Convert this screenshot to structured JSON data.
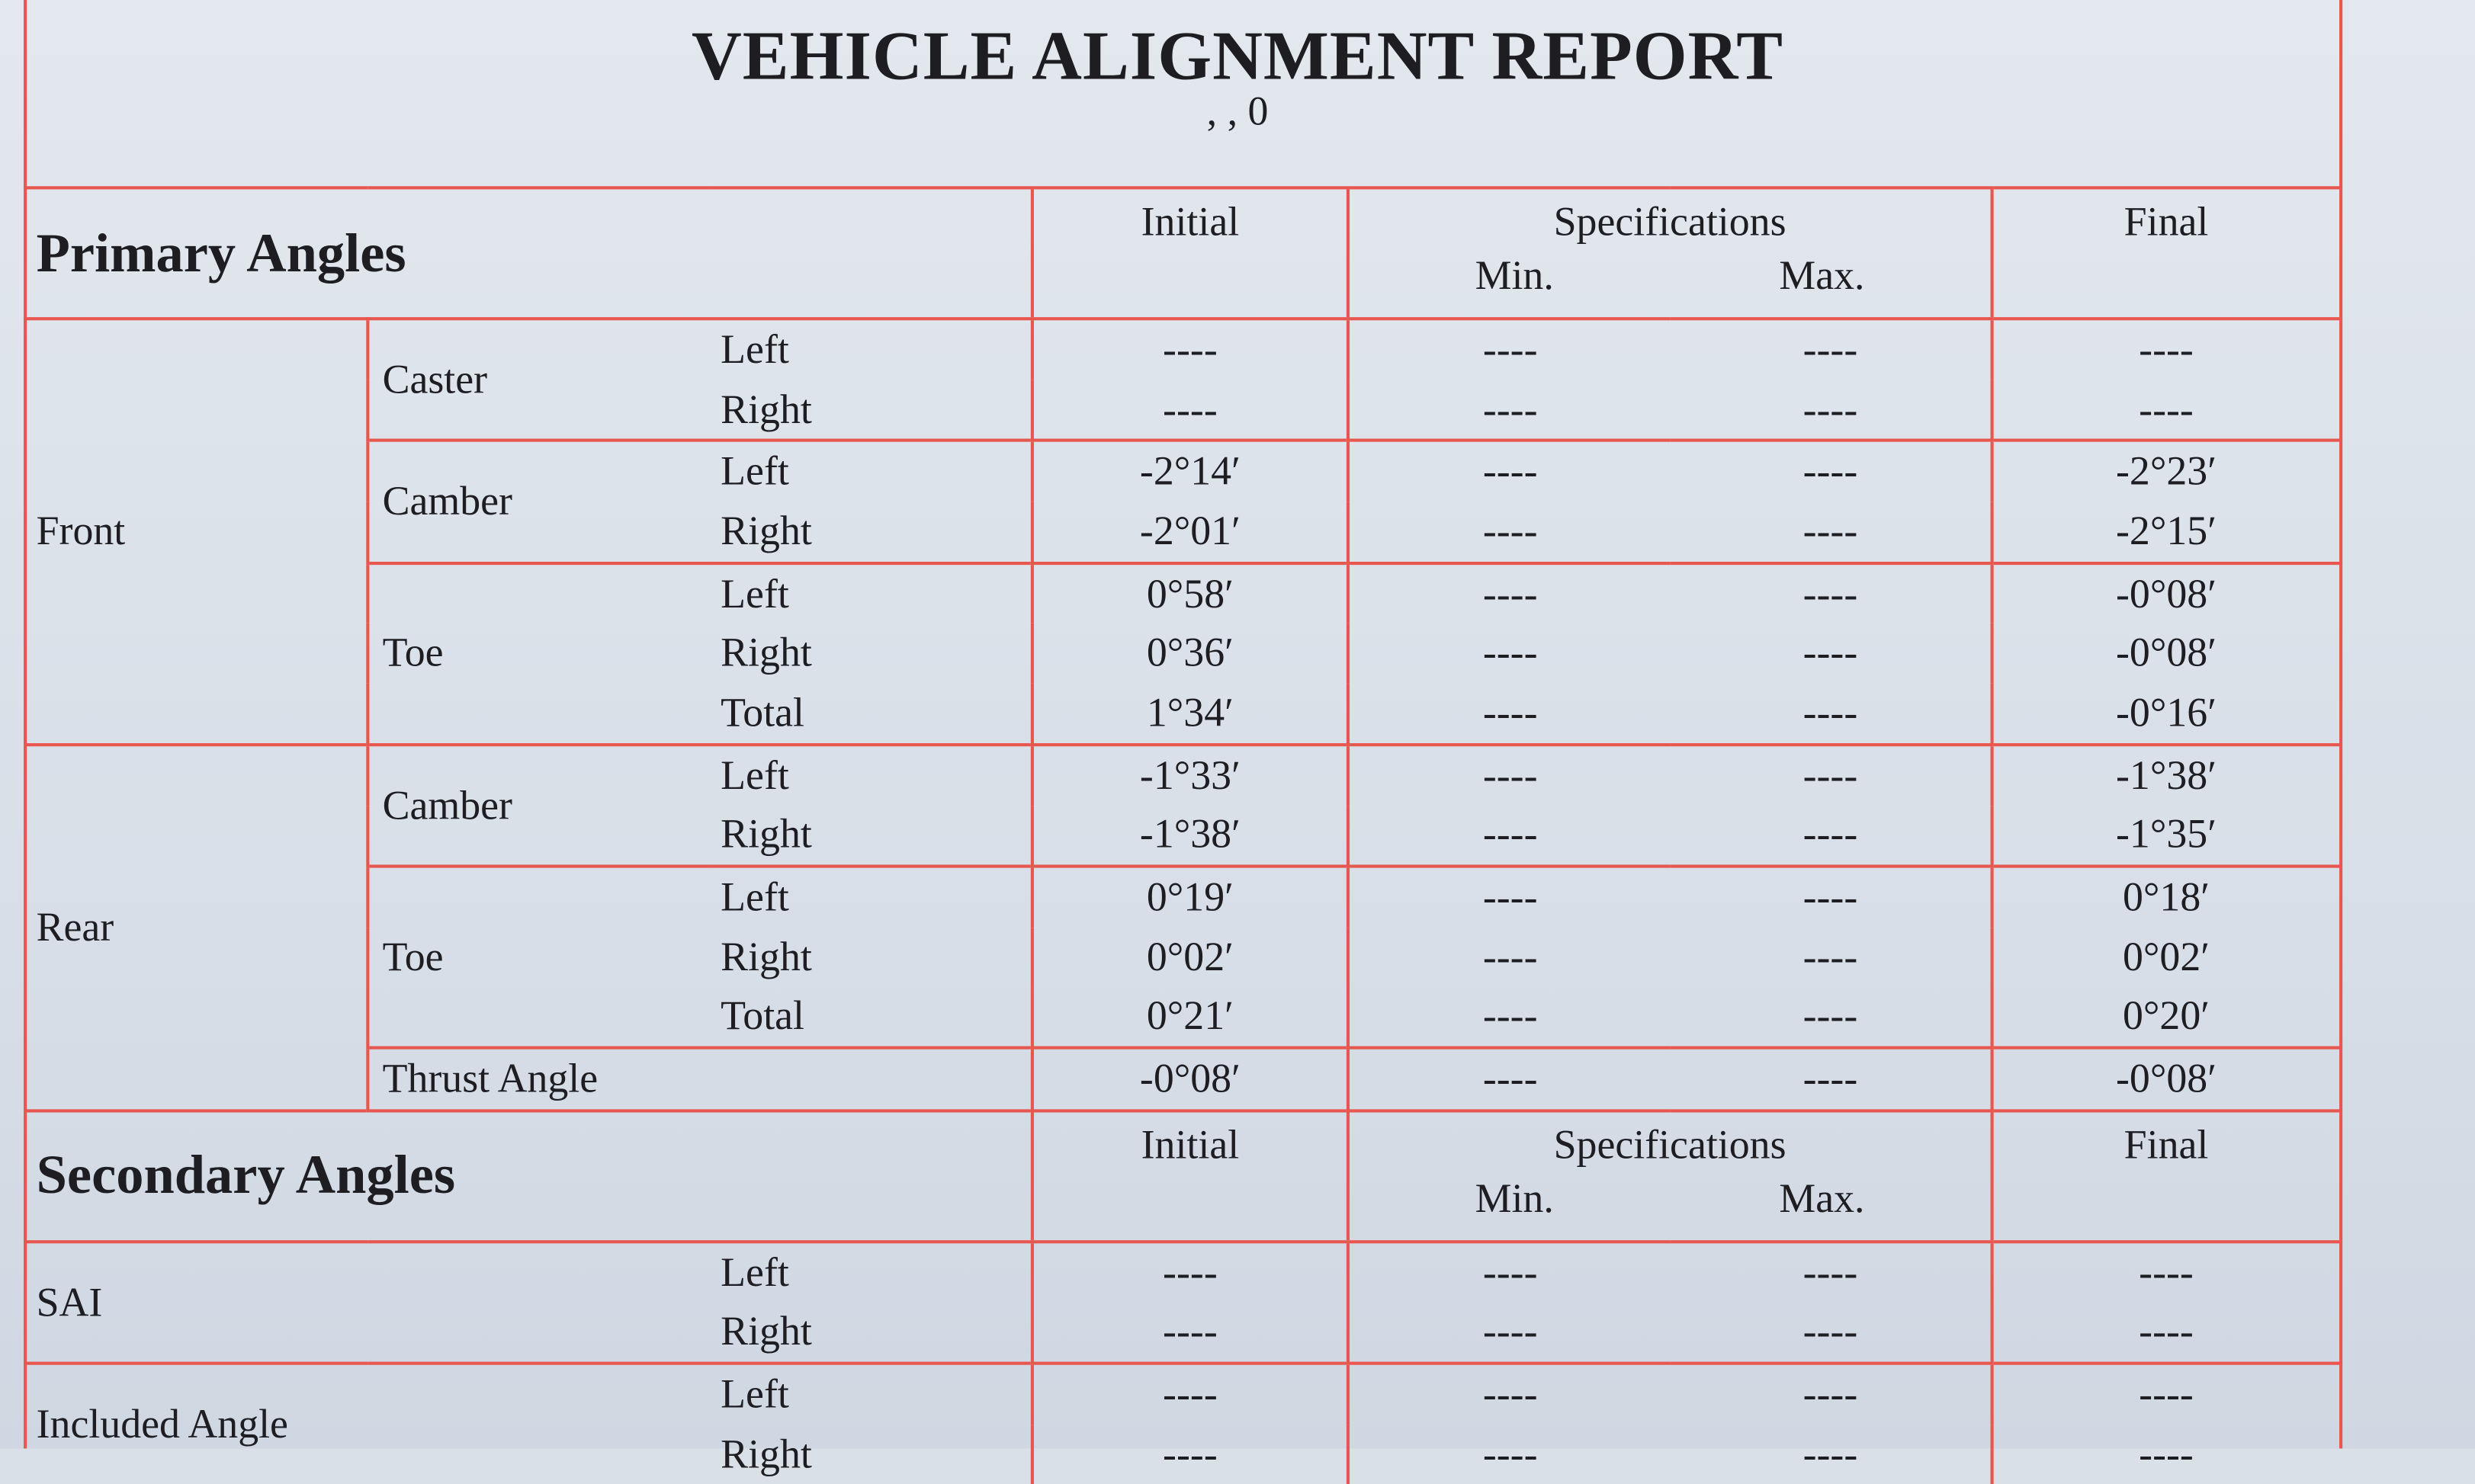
{
  "report": {
    "title": "VEHICLE ALIGNMENT REPORT",
    "subtitle": ", , 0"
  },
  "columns": {
    "initial": "Initial",
    "specifications": "Specifications",
    "min": "Min.",
    "max": "Max.",
    "final": "Final"
  },
  "primary": {
    "heading": "Primary Angles",
    "sections": [
      {
        "label": "Front",
        "groups": [
          {
            "angle": "Caster",
            "rows": [
              {
                "side": "Left",
                "initial": "----",
                "min": "----",
                "max": "----",
                "final": "----"
              },
              {
                "side": "Right",
                "initial": "----",
                "min": "----",
                "max": "----",
                "final": "----"
              }
            ]
          },
          {
            "angle": "Camber",
            "rows": [
              {
                "side": "Left",
                "initial": "-2°14′",
                "min": "----",
                "max": "----",
                "final": "-2°23′"
              },
              {
                "side": "Right",
                "initial": "-2°01′",
                "min": "----",
                "max": "----",
                "final": "-2°15′"
              }
            ]
          },
          {
            "angle": "Toe",
            "rows": [
              {
                "side": "Left",
                "initial": "0°58′",
                "min": "----",
                "max": "----",
                "final": "-0°08′"
              },
              {
                "side": "Right",
                "initial": "0°36′",
                "min": "----",
                "max": "----",
                "final": "-0°08′"
              },
              {
                "side": "Total",
                "initial": "1°34′",
                "min": "----",
                "max": "----",
                "final": "-0°16′"
              }
            ]
          }
        ]
      },
      {
        "label": "Rear",
        "groups": [
          {
            "angle": "Camber",
            "rows": [
              {
                "side": "Left",
                "initial": "-1°33′",
                "min": "----",
                "max": "----",
                "final": "-1°38′"
              },
              {
                "side": "Right",
                "initial": "-1°38′",
                "min": "----",
                "max": "----",
                "final": "-1°35′"
              }
            ]
          },
          {
            "angle": "Toe",
            "rows": [
              {
                "side": "Left",
                "initial": "0°19′",
                "min": "----",
                "max": "----",
                "final": "0°18′"
              },
              {
                "side": "Right",
                "initial": "0°02′",
                "min": "----",
                "max": "----",
                "final": "0°02′"
              },
              {
                "side": "Total",
                "initial": "0°21′",
                "min": "----",
                "max": "----",
                "final": "0°20′"
              }
            ]
          },
          {
            "angle": "Thrust Angle",
            "rows": [
              {
                "side": "",
                "initial": "-0°08′",
                "min": "----",
                "max": "----",
                "final": "-0°08′"
              }
            ]
          }
        ]
      }
    ]
  },
  "secondary": {
    "heading": "Secondary Angles",
    "groups": [
      {
        "angle": "SAI",
        "rows": [
          {
            "side": "Left",
            "initial": "----",
            "min": "----",
            "max": "----",
            "final": "----"
          },
          {
            "side": "Right",
            "initial": "----",
            "min": "----",
            "max": "----",
            "final": "----"
          }
        ]
      },
      {
        "angle": "Included Angle",
        "rows": [
          {
            "side": "Left",
            "initial": "----",
            "min": "----",
            "max": "----",
            "final": "----"
          },
          {
            "side": "Right",
            "initial": "----",
            "min": "----",
            "max": "----",
            "final": "----"
          }
        ]
      }
    ]
  }
}
